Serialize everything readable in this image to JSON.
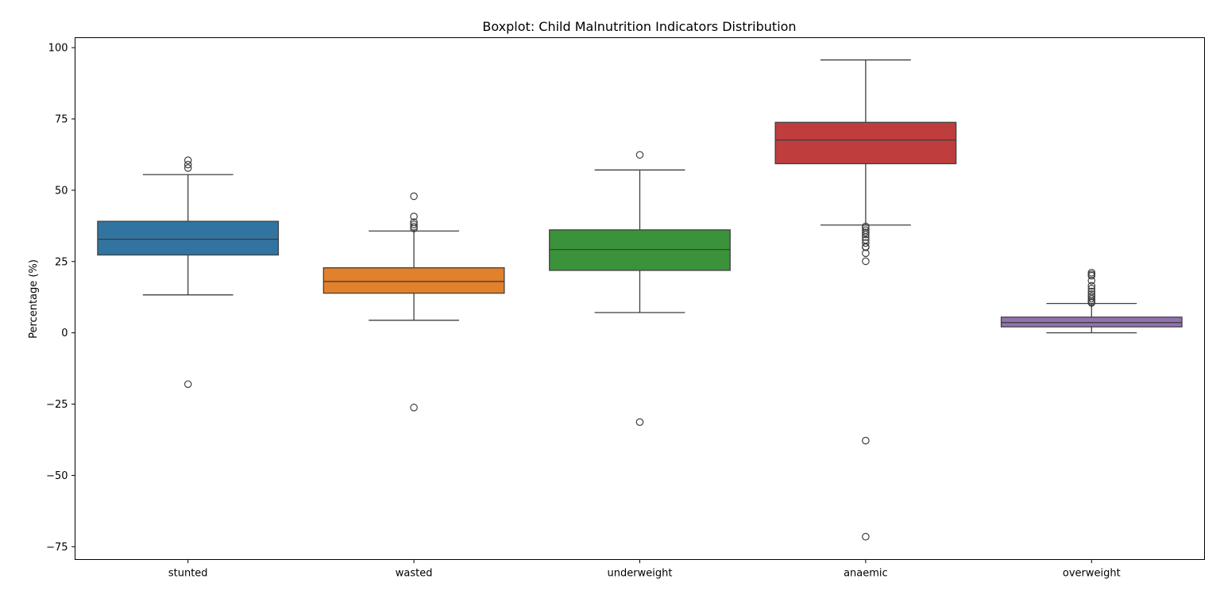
{
  "chart_data": {
    "type": "box",
    "title": "Boxplot: Child Malnutrition Indicators Distribution",
    "xlabel": "",
    "ylabel": "Percentage (%)",
    "ylim": [
      -79.5,
      103.5
    ],
    "yticks": [
      -75,
      -50,
      -25,
      0,
      25,
      50,
      75,
      100
    ],
    "grid": false,
    "categories": [
      "stunted",
      "wasted",
      "underweight",
      "anaemic",
      "overweight"
    ],
    "colors": [
      "#3274a1",
      "#e1812c",
      "#3a923a",
      "#c03d3e",
      "#9372b2"
    ],
    "boxes": [
      {
        "name": "stunted",
        "whislo": 13.3,
        "q1": 27.3,
        "med": 32.8,
        "q3": 39.1,
        "whishi": 55.5,
        "fliers": [
          60.5,
          59.0,
          57.8,
          -18.0
        ]
      },
      {
        "name": "wasted",
        "whislo": 4.4,
        "q1": 13.9,
        "med": 18.0,
        "q3": 22.8,
        "whishi": 35.7,
        "fliers": [
          47.9,
          40.8,
          38.8,
          38.0,
          37.2,
          36.6,
          -26.2
        ]
      },
      {
        "name": "underweight",
        "whislo": 7.1,
        "q1": 21.9,
        "med": 29.2,
        "q3": 36.1,
        "whishi": 57.1,
        "fliers": [
          62.4,
          -31.3
        ]
      },
      {
        "name": "anaemic",
        "whislo": 37.8,
        "q1": 59.3,
        "med": 67.6,
        "q3": 73.8,
        "whishi": 95.7,
        "fliers": [
          37.3,
          36.8,
          36.0,
          35.2,
          34.5,
          33.6,
          32.6,
          31.5,
          30.2,
          30.0,
          27.9,
          25.1,
          -37.8,
          -71.5
        ]
      },
      {
        "name": "overweight",
        "whislo": 0.0,
        "q1": 2.1,
        "med": 3.6,
        "q3": 5.5,
        "whishi": 10.3,
        "fliers": [
          21.1,
          20.5,
          20.0,
          18.3,
          16.5,
          15.5,
          14.5,
          13.6,
          12.8,
          12.0,
          11.3,
          10.8,
          10.5
        ]
      }
    ]
  }
}
